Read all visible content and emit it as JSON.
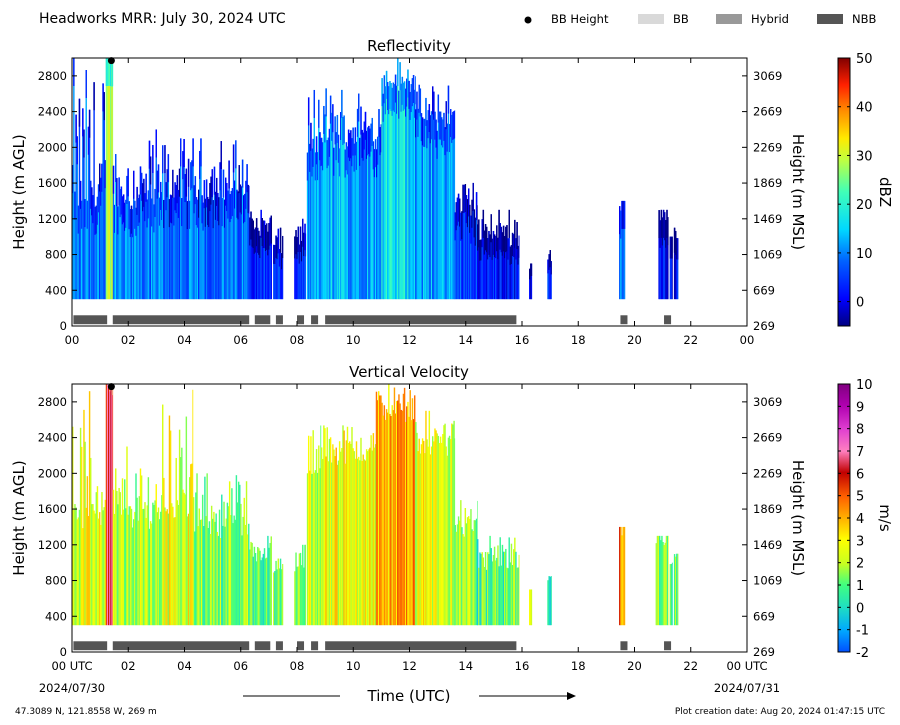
{
  "header": {
    "title": "Headworks MRR:  July 30, 2024 UTC"
  },
  "legend": [
    {
      "label": "BB Height",
      "kind": "marker",
      "color": "#000000"
    },
    {
      "label": "BB",
      "kind": "swatch",
      "color": "#d9d9d9"
    },
    {
      "label": "Hybrid",
      "kind": "swatch",
      "color": "#999999"
    },
    {
      "label": "NBB",
      "kind": "swatch",
      "color": "#555555"
    }
  ],
  "footer": {
    "location": "47.3089 N, 121.8558 W, 269 m",
    "created": "Plot creation date: Aug 20, 2024 01:47:15 UTC",
    "xlabel": "Time (UTC)"
  },
  "chart_data": [
    {
      "type": "heatmap",
      "title": "Reflectivity",
      "xlabel": "Time (UTC)",
      "ylabel": "Height (m AGL)",
      "ylabel_right": "Height (m MSL)",
      "xlim": [
        0,
        24
      ],
      "ylim": [
        0,
        3000
      ],
      "x_ticks": [
        "00",
        "02",
        "04",
        "06",
        "08",
        "10",
        "12",
        "14",
        "16",
        "18",
        "20",
        "22",
        "00"
      ],
      "x_tick_values": [
        0,
        2,
        4,
        6,
        8,
        10,
        12,
        14,
        16,
        18,
        20,
        22,
        24
      ],
      "y_ticks": [
        "0",
        "400",
        "800",
        "1200",
        "1600",
        "2000",
        "2400",
        "2800"
      ],
      "y_tick_values": [
        0,
        400,
        800,
        1200,
        1600,
        2000,
        2400,
        2800
      ],
      "y2_ticks": [
        "269",
        "669",
        "1069",
        "1469",
        "1869",
        "2269",
        "2669",
        "3069"
      ],
      "y2_tick_values": [
        0,
        400,
        800,
        1200,
        1600,
        2000,
        2400,
        2800
      ],
      "colorbar": {
        "label": "dBZ",
        "min": -5,
        "max": 50,
        "ticks": [
          "0",
          "10",
          "20",
          "30",
          "40",
          "50"
        ],
        "tick_values": [
          0,
          10,
          20,
          30,
          40,
          50
        ]
      },
      "bb_height_markers": [
        {
          "time": 1.4,
          "height": 2970
        }
      ],
      "bb_type_bars": [
        {
          "start": 0.05,
          "end": 1.25,
          "type": "NBB"
        },
        {
          "start": 1.45,
          "end": 6.3,
          "type": "NBB"
        },
        {
          "start": 6.5,
          "end": 7.05,
          "type": "NBB"
        },
        {
          "start": 7.25,
          "end": 7.5,
          "type": "NBB"
        },
        {
          "start": 8.0,
          "end": 8.25,
          "type": "NBB"
        },
        {
          "start": 8.5,
          "end": 8.75,
          "type": "NBB"
        },
        {
          "start": 9.0,
          "end": 15.8,
          "type": "NBB"
        },
        {
          "start": 19.5,
          "end": 19.75,
          "type": "NBB"
        },
        {
          "start": 21.05,
          "end": 21.3,
          "type": "NBB"
        }
      ],
      "echo_segments": [
        {
          "start": 0.0,
          "end": 1.2,
          "top": 1400,
          "max_top": 3000,
          "value": 9
        },
        {
          "start": 1.2,
          "end": 1.45,
          "top": 3000,
          "max_top": 3000,
          "value": 26
        },
        {
          "start": 1.45,
          "end": 3.2,
          "top": 1400,
          "max_top": 2200,
          "value": 9
        },
        {
          "start": 3.2,
          "end": 6.3,
          "top": 1500,
          "max_top": 2100,
          "value": 8
        },
        {
          "start": 6.3,
          "end": 7.1,
          "top": 1100,
          "max_top": 1300,
          "value": 4
        },
        {
          "start": 7.15,
          "end": 7.5,
          "top": 900,
          "max_top": 1100,
          "value": 4
        },
        {
          "start": 7.9,
          "end": 8.3,
          "top": 1000,
          "max_top": 1200,
          "value": 3
        },
        {
          "start": 8.35,
          "end": 8.85,
          "top": 1900,
          "max_top": 2800,
          "value": 10
        },
        {
          "start": 8.85,
          "end": 11.0,
          "top": 2100,
          "max_top": 2700,
          "value": 12
        },
        {
          "start": 11.0,
          "end": 12.2,
          "top": 2700,
          "max_top": 3000,
          "value": 15
        },
        {
          "start": 12.2,
          "end": 13.6,
          "top": 2300,
          "max_top": 2700,
          "value": 11
        },
        {
          "start": 13.6,
          "end": 14.4,
          "top": 1300,
          "max_top": 1700,
          "value": 6
        },
        {
          "start": 14.4,
          "end": 15.9,
          "top": 1000,
          "max_top": 1300,
          "value": 2
        },
        {
          "start": 16.25,
          "end": 16.35,
          "top": 700,
          "max_top": 700,
          "value": 1
        },
        {
          "start": 16.9,
          "end": 17.05,
          "top": 850,
          "max_top": 850,
          "value": 3
        },
        {
          "start": 19.45,
          "end": 19.65,
          "top": 1400,
          "max_top": 1400,
          "value": 8
        },
        {
          "start": 20.85,
          "end": 21.2,
          "top": 1300,
          "max_top": 1300,
          "value": 2
        },
        {
          "start": 21.25,
          "end": 21.35,
          "top": 1000,
          "max_top": 1000,
          "value": 1
        },
        {
          "start": 21.4,
          "end": 21.55,
          "top": 1100,
          "max_top": 1100,
          "value": 2
        }
      ]
    },
    {
      "type": "heatmap",
      "title": "Vertical Velocity",
      "xlabel": "Time (UTC)",
      "ylabel": "Height (m AGL)",
      "ylabel_right": "Height (m MSL)",
      "xlim": [
        0,
        24
      ],
      "ylim": [
        0,
        3000
      ],
      "x_ticks": [
        "00 UTC",
        "02",
        "04",
        "06",
        "08",
        "10",
        "12",
        "14",
        "16",
        "18",
        "20",
        "22",
        "00 UTC"
      ],
      "x_tick_values": [
        0,
        2,
        4,
        6,
        8,
        10,
        12,
        14,
        16,
        18,
        20,
        22,
        24
      ],
      "x_subticks": [
        {
          "value": 0,
          "label": "2024/07/30"
        },
        {
          "value": 24,
          "label": "2024/07/31"
        }
      ],
      "y_ticks": [
        "0",
        "400",
        "800",
        "1200",
        "1600",
        "2000",
        "2400",
        "2800"
      ],
      "y_tick_values": [
        0,
        400,
        800,
        1200,
        1600,
        2000,
        2400,
        2800
      ],
      "y2_ticks": [
        "269",
        "669",
        "1069",
        "1469",
        "1869",
        "2269",
        "2669",
        "3069"
      ],
      "y2_tick_values": [
        0,
        400,
        800,
        1200,
        1600,
        2000,
        2400,
        2800
      ],
      "colorbar": {
        "label": "m/s",
        "min": -2,
        "max": 10,
        "ticks": [
          "-2",
          "-1",
          "0",
          "1",
          "2",
          "3",
          "4",
          "5",
          "6",
          "7",
          "8",
          "9",
          "10"
        ],
        "tick_values": [
          -2,
          -1,
          0,
          1,
          2,
          3,
          4,
          5,
          6,
          7,
          8,
          9,
          10
        ]
      },
      "bb_height_markers": [
        {
          "time": 1.4,
          "height": 2970
        }
      ],
      "bb_type_bars": [
        {
          "start": 0.05,
          "end": 1.25,
          "type": "NBB"
        },
        {
          "start": 1.45,
          "end": 6.3,
          "type": "NBB"
        },
        {
          "start": 6.5,
          "end": 7.05,
          "type": "NBB"
        },
        {
          "start": 7.25,
          "end": 7.5,
          "type": "NBB"
        },
        {
          "start": 8.0,
          "end": 8.25,
          "type": "NBB"
        },
        {
          "start": 8.5,
          "end": 8.75,
          "type": "NBB"
        },
        {
          "start": 9.0,
          "end": 15.8,
          "type": "NBB"
        },
        {
          "start": 19.5,
          "end": 19.75,
          "type": "NBB"
        },
        {
          "start": 21.05,
          "end": 21.3,
          "type": "NBB"
        }
      ],
      "echo_segments": [
        {
          "start": 0.0,
          "end": 1.2,
          "top": 1500,
          "max_top": 3000,
          "value": 2.5
        },
        {
          "start": 1.2,
          "end": 1.45,
          "top": 3000,
          "max_top": 3000,
          "value": 6.5
        },
        {
          "start": 1.45,
          "end": 3.2,
          "top": 1500,
          "max_top": 2300,
          "value": 1.8
        },
        {
          "start": 3.2,
          "end": 4.3,
          "top": 1600,
          "max_top": 3000,
          "value": 2.6
        },
        {
          "start": 4.3,
          "end": 6.3,
          "top": 1400,
          "max_top": 2000,
          "value": 1.5
        },
        {
          "start": 6.3,
          "end": 7.1,
          "top": 1100,
          "max_top": 1300,
          "value": 1.0
        },
        {
          "start": 7.15,
          "end": 7.5,
          "top": 900,
          "max_top": 1100,
          "value": 1.0
        },
        {
          "start": 7.9,
          "end": 8.3,
          "top": 1000,
          "max_top": 1200,
          "value": 1.2
        },
        {
          "start": 8.35,
          "end": 8.85,
          "top": 2000,
          "max_top": 2800,
          "value": 2.2
        },
        {
          "start": 8.85,
          "end": 10.8,
          "top": 2200,
          "max_top": 2600,
          "value": 2.8
        },
        {
          "start": 10.8,
          "end": 12.2,
          "top": 2700,
          "max_top": 3000,
          "value": 4.0
        },
        {
          "start": 12.2,
          "end": 13.6,
          "top": 2300,
          "max_top": 2700,
          "value": 2.5
        },
        {
          "start": 13.6,
          "end": 14.4,
          "top": 1400,
          "max_top": 1700,
          "value": 1.5
        },
        {
          "start": 14.4,
          "end": 15.9,
          "top": 1000,
          "max_top": 1300,
          "value": 0.9
        },
        {
          "start": 16.25,
          "end": 16.35,
          "top": 700,
          "max_top": 700,
          "value": 2.0
        },
        {
          "start": 16.9,
          "end": 17.05,
          "top": 850,
          "max_top": 850,
          "value": 0.6
        },
        {
          "start": 19.45,
          "end": 19.65,
          "top": 1400,
          "max_top": 1400,
          "value": 4.5
        },
        {
          "start": 20.75,
          "end": 21.2,
          "top": 1300,
          "max_top": 1300,
          "value": 1.6
        },
        {
          "start": 21.25,
          "end": 21.35,
          "top": 1000,
          "max_top": 1000,
          "value": 1.4
        },
        {
          "start": 21.4,
          "end": 21.55,
          "top": 1100,
          "max_top": 1100,
          "value": 1.2
        }
      ]
    }
  ]
}
